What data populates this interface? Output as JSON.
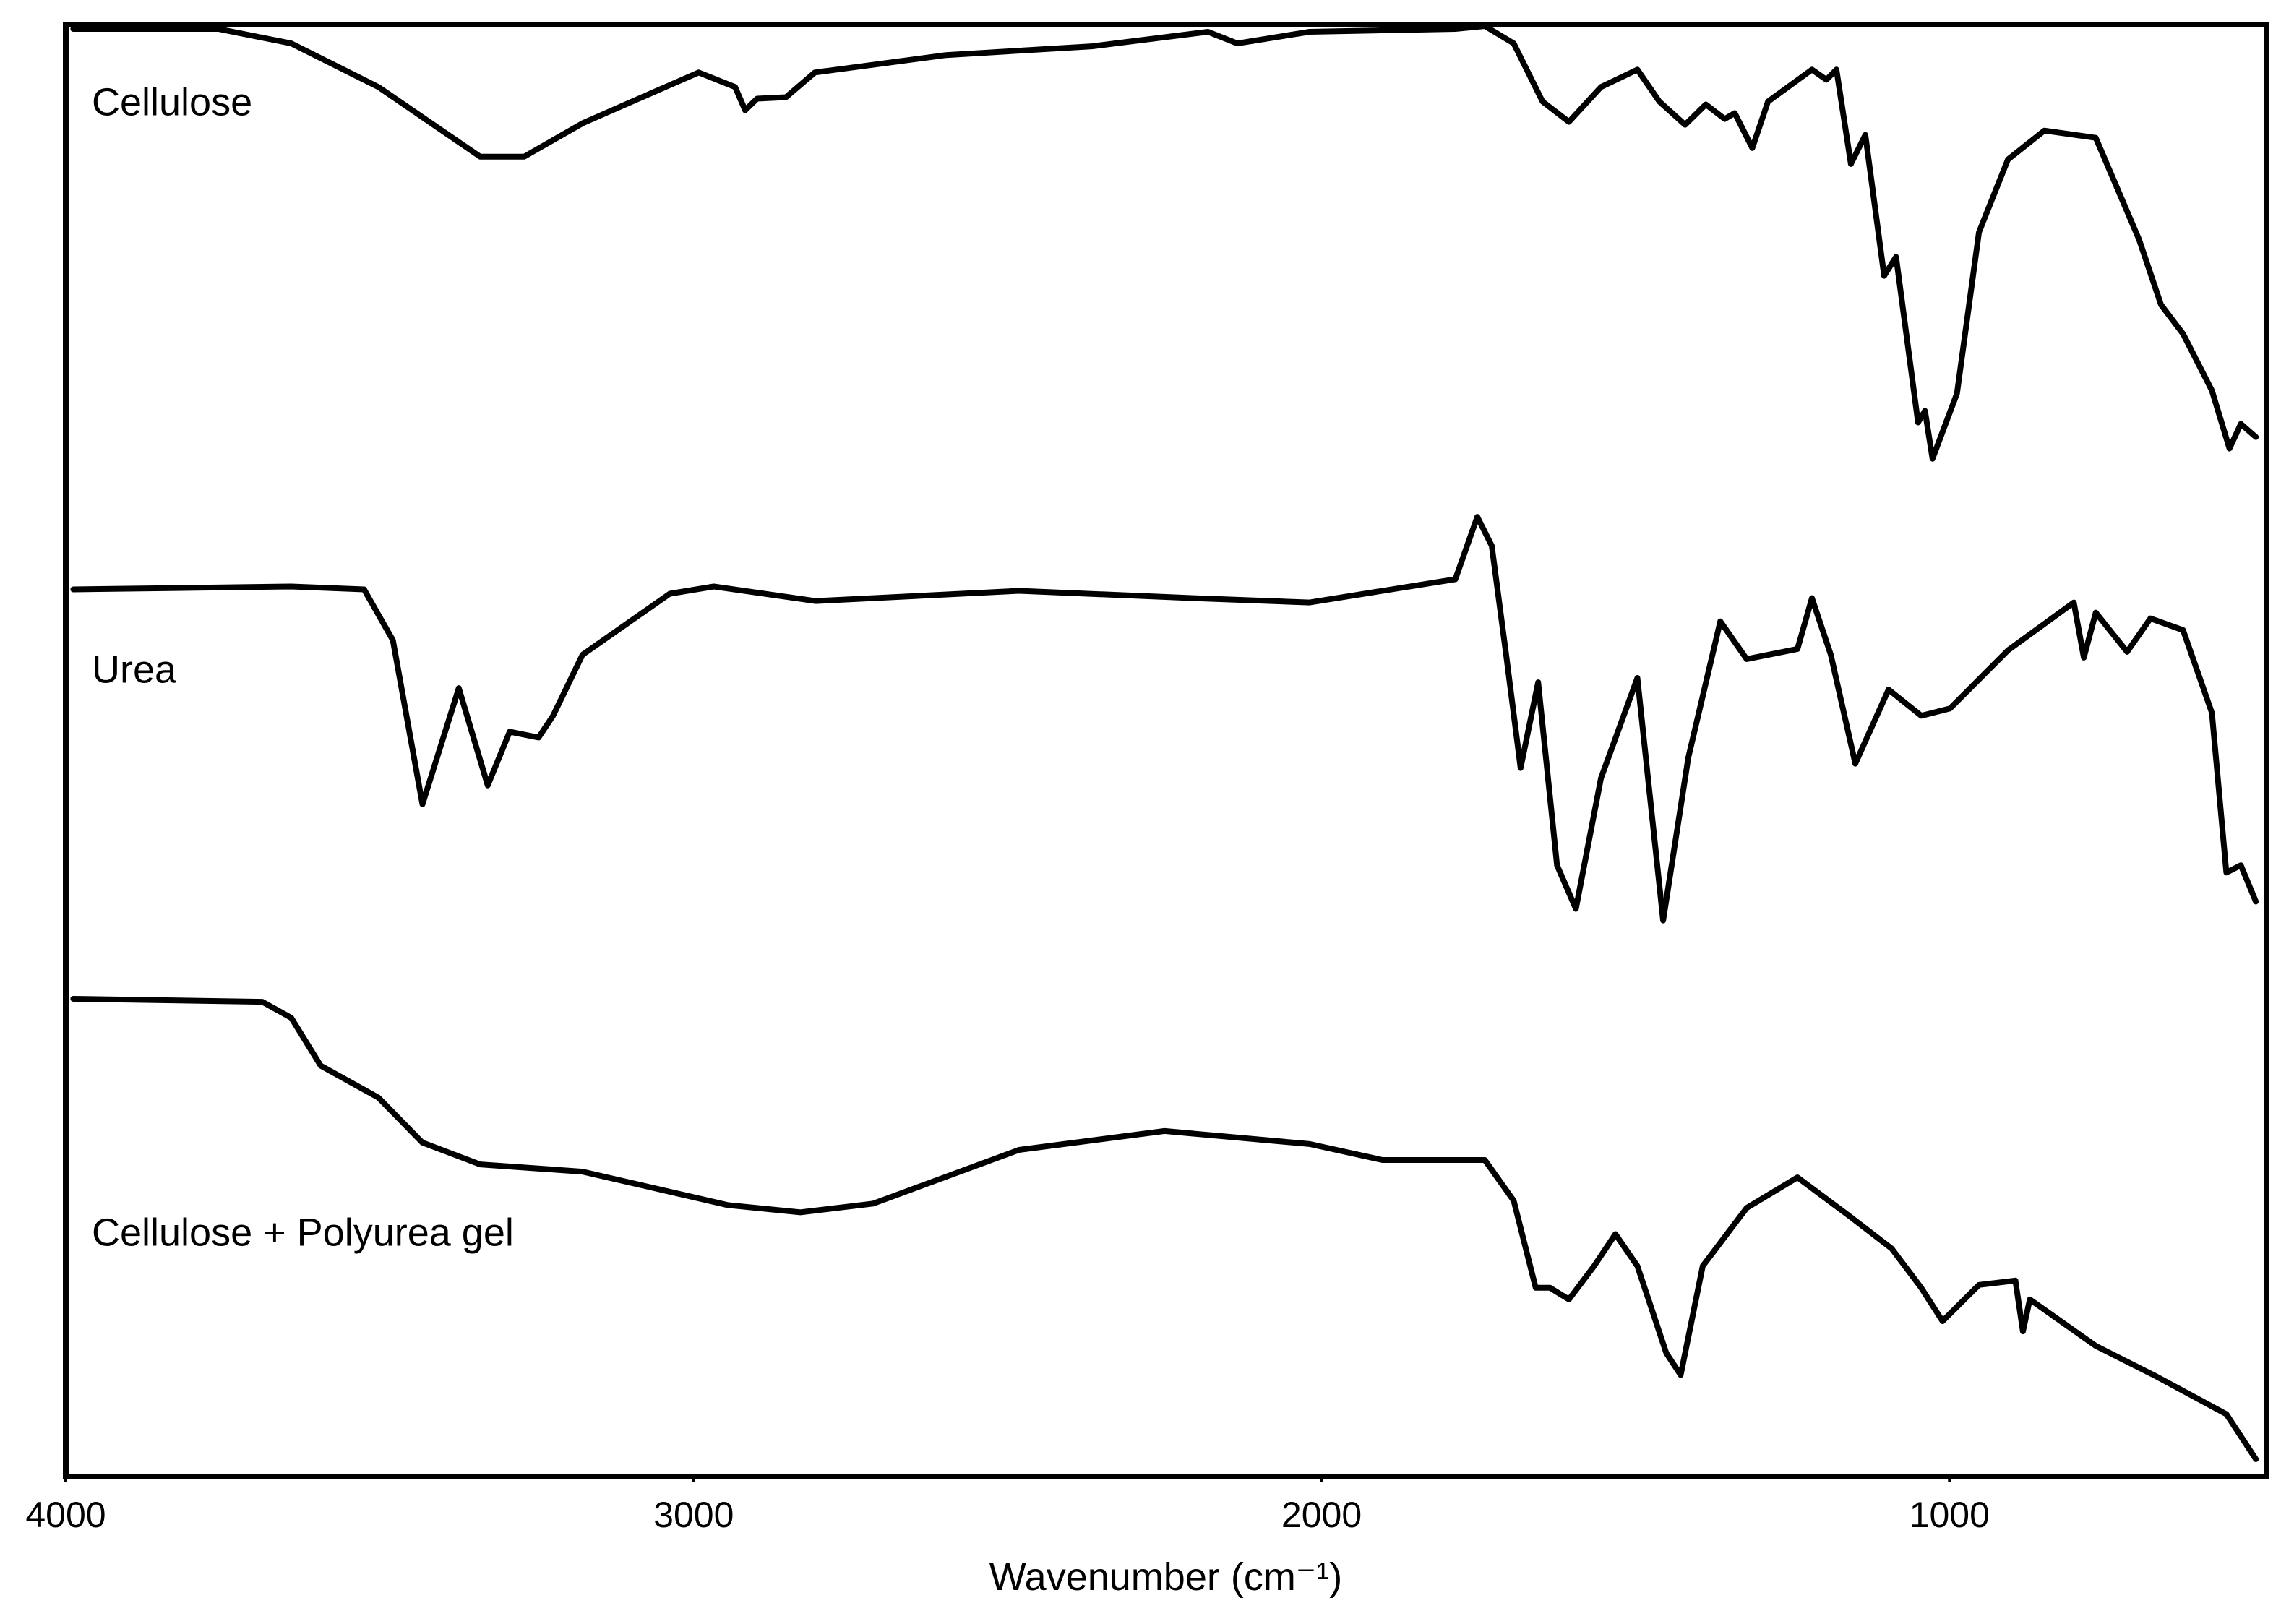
{
  "chart_data": {
    "type": "line",
    "x_label": "Wavenumber (cm⁻¹)",
    "xlim": [
      4000,
      495
    ],
    "xticks": [
      4000,
      3000,
      2000,
      1000
    ],
    "ylim": [
      0,
      100
    ],
    "series": [
      {
        "name": "Cellulose",
        "color": "#000000",
        "x": [
          3988,
          3757,
          3641,
          3502,
          3340,
          3270,
          3177,
          3061,
          2992,
          2934,
          2918,
          2899,
          2853,
          2807,
          2598,
          2366,
          2181,
          2134,
          2019,
          1787,
          1740,
          1694,
          1648,
          1606,
          1555,
          1497,
          1462,
          1421,
          1388,
          1358,
          1342,
          1314,
          1289,
          1219,
          1196,
          1180,
          1157,
          1134,
          1104,
          1085,
          1050,
          1039,
          1027,
          988,
          953,
          907,
          849,
          767,
          698,
          663,
          628,
          582,
          554,
          536,
          512
        ],
        "values": [
          99.7,
          99.7,
          98.7,
          95.7,
          90.9,
          90.9,
          93.2,
          95.4,
          96.7,
          95.7,
          94.1,
          94.9,
          95.0,
          96.7,
          97.9,
          98.5,
          99.5,
          98.7,
          99.5,
          99.7,
          99.9,
          98.7,
          94.7,
          93.3,
          95.7,
          96.9,
          94.7,
          93.1,
          94.5,
          93.5,
          93.9,
          91.5,
          94.7,
          96.9,
          96.2,
          96.9,
          90.4,
          92.4,
          82.7,
          84.0,
          72.6,
          73.4,
          70.1,
          74.6,
          85.7,
          90.7,
          92.7,
          92.2,
          85.2,
          80.7,
          78.7,
          74.8,
          70.8,
          72.5,
          71.6
        ]
      },
      {
        "name": "Urea",
        "color": "#000000",
        "x": [
          3988,
          3641,
          3525,
          3479,
          3432,
          3374,
          3328,
          3293,
          3247,
          3224,
          3177,
          3038,
          2968,
          2806,
          2482,
          2204,
          2019,
          1787,
          1752,
          1729,
          1706,
          1683,
          1655,
          1625,
          1595,
          1555,
          1497,
          1474,
          1456,
          1416,
          1365,
          1323,
          1242,
          1219,
          1189,
          1150,
          1097,
          1045,
          999,
          907,
          802,
          786,
          767,
          717,
          680,
          628,
          582,
          559,
          536,
          512
        ],
        "values": [
          61.1,
          61.3,
          61.1,
          57.6,
          46.3,
          54.3,
          47.6,
          51.3,
          50.9,
          52.4,
          56.6,
          60.8,
          61.3,
          60.3,
          61.0,
          60.5,
          60.2,
          61.8,
          66.1,
          64.1,
          56.6,
          48.8,
          54.7,
          42.1,
          39.1,
          48.1,
          55.0,
          45.6,
          38.3,
          49.5,
          58.9,
          56.3,
          57.0,
          60.5,
          56.6,
          49.1,
          54.2,
          52.4,
          52.9,
          56.9,
          60.2,
          56.4,
          59.5,
          56.8,
          59.1,
          58.3,
          52.6,
          41.6,
          42.1,
          39.6
        ]
      },
      {
        "name": "Cellulose + Polyurea gel",
        "color": "#000000",
        "x": [
          3988,
          3687,
          3641,
          3594,
          3502,
          3432,
          3340,
          3177,
          2946,
          2830,
          2714,
          2482,
          2250,
          2019,
          1903,
          1740,
          1694,
          1659,
          1636,
          1606,
          1566,
          1532,
          1497,
          1451,
          1428,
          1393,
          1323,
          1242,
          1161,
          1092,
          1045,
          1011,
          953,
          895,
          883,
          872,
          767,
          675,
          559,
          512
        ],
        "values": [
          32.9,
          32.7,
          31.6,
          28.3,
          26.1,
          23.0,
          21.5,
          21.0,
          18.7,
          18.2,
          18.8,
          22.5,
          23.8,
          22.9,
          21.8,
          21.8,
          19.0,
          13.0,
          13.0,
          12.2,
          14.5,
          16.7,
          14.5,
          8.5,
          7.0,
          14.5,
          18.5,
          20.6,
          18.0,
          15.7,
          13.0,
          10.7,
          13.2,
          13.5,
          10.0,
          12.2,
          9.0,
          7.0,
          4.3,
          1.2
        ]
      }
    ]
  }
}
